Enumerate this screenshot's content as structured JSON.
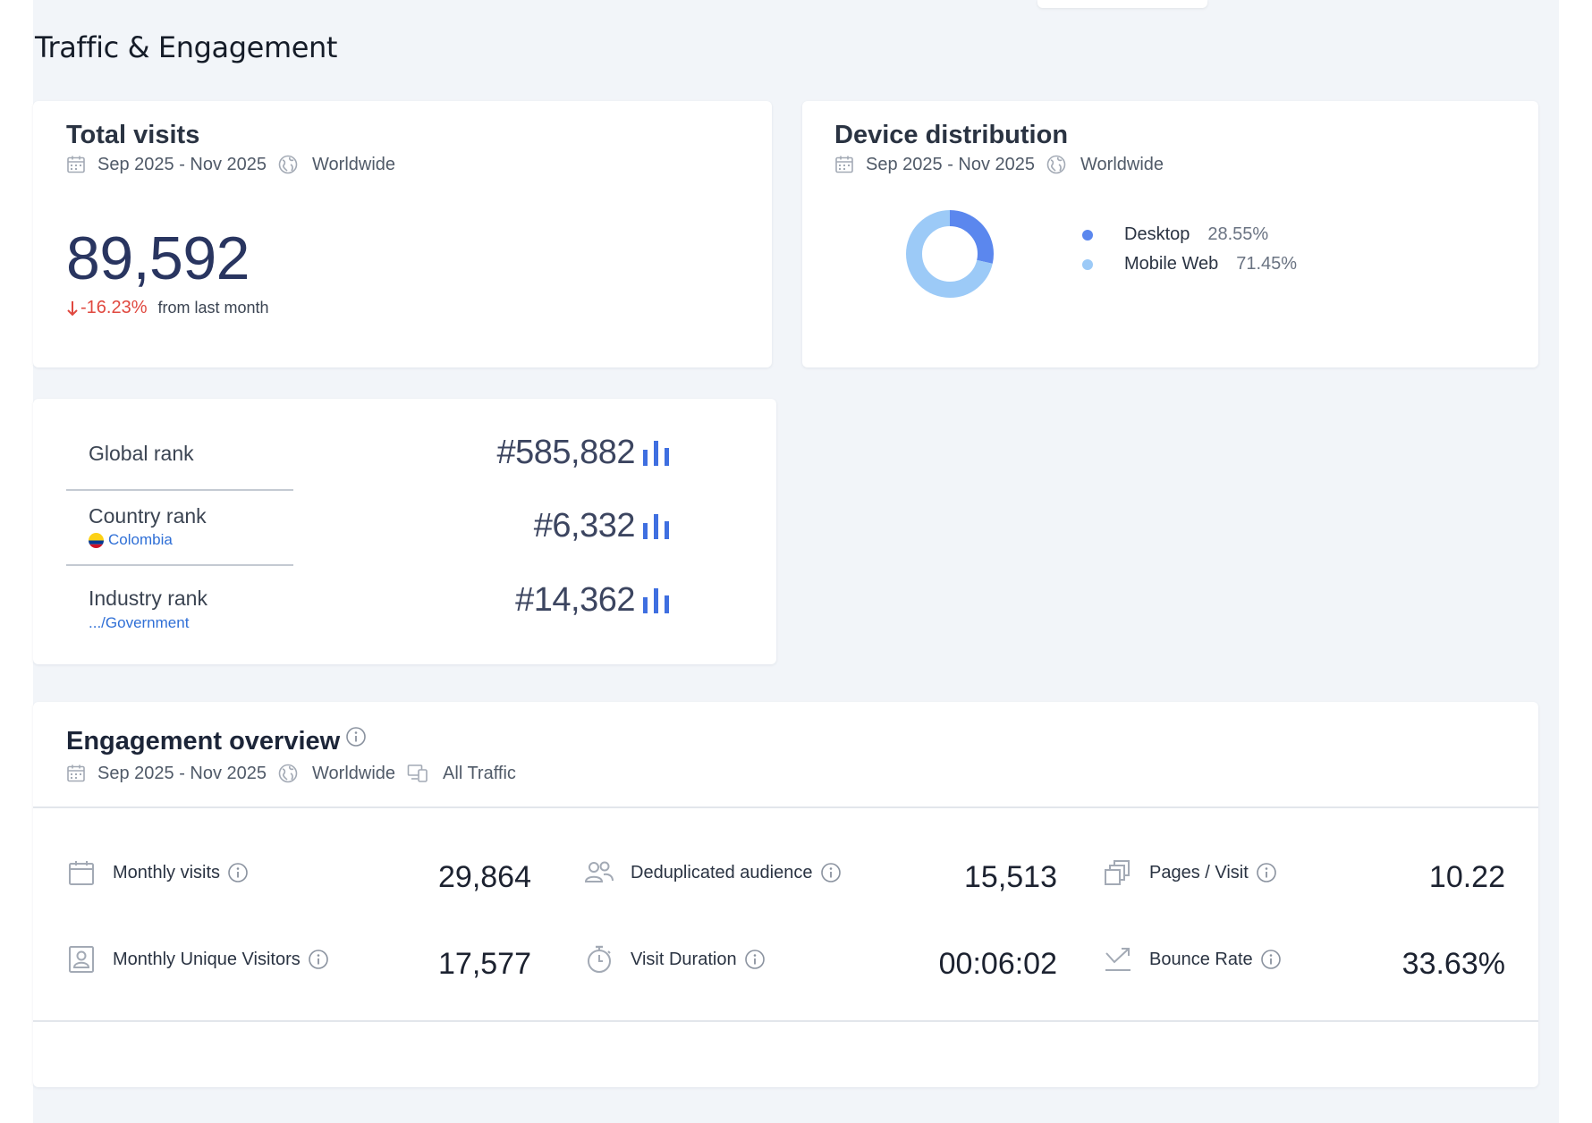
{
  "page": {
    "title": "Traffic & Engagement"
  },
  "total_visits": {
    "title": "Total visits",
    "date_range": "Sep 2025 - Nov 2025",
    "region": "Worldwide",
    "value": "89,592",
    "change": "-16.23%",
    "change_label": "from last month",
    "change_direction": "down",
    "change_color": "#e0483f"
  },
  "device_distribution": {
    "title": "Device distribution",
    "date_range": "Sep 2025 - Nov 2025",
    "region": "Worldwide",
    "segments": [
      {
        "label": "Desktop",
        "value": "28.55%",
        "percent": 28.55,
        "color": "#5b87ee"
      },
      {
        "label": "Mobile Web",
        "value": "71.45%",
        "percent": 71.45,
        "color": "#9ccaf7"
      }
    ]
  },
  "ranks": {
    "global": {
      "label": "Global rank",
      "value": "#585,882"
    },
    "country": {
      "label": "Country rank",
      "sub": "Colombia",
      "value": "#6,332"
    },
    "industry": {
      "label": "Industry rank",
      "sub": ".../Government",
      "value": "#14,362"
    },
    "accent": "#3f6fe0"
  },
  "engagement": {
    "title": "Engagement overview",
    "date_range": "Sep 2025 - Nov 2025",
    "region": "Worldwide",
    "traffic_type": "All Traffic",
    "metrics": {
      "monthly_visits": {
        "label": "Monthly visits",
        "value": "29,864"
      },
      "dedup_audience": {
        "label": "Deduplicated audience",
        "value": "15,513"
      },
      "pages_per_visit": {
        "label": "Pages / Visit",
        "value": "10.22"
      },
      "unique_visitors": {
        "label": "Monthly Unique Visitors",
        "value": "17,577"
      },
      "visit_duration": {
        "label": "Visit Duration",
        "value": "00:06:02"
      },
      "bounce_rate": {
        "label": "Bounce Rate",
        "value": "33.63%"
      }
    }
  }
}
